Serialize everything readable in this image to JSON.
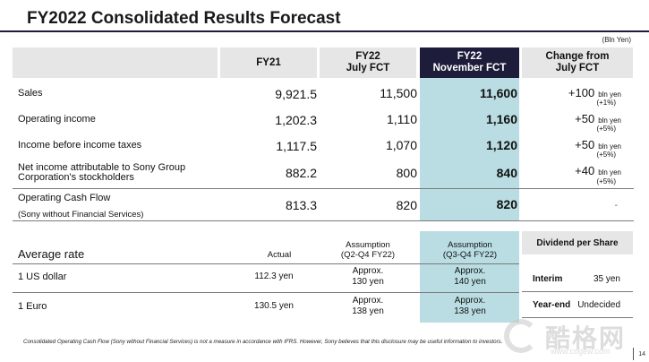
{
  "title": "FY2022 Consolidated Results Forecast",
  "unit": "(Bln Yen)",
  "headers": {
    "fy21": "FY21",
    "july_line1": "FY22",
    "july_line2": "July FCT",
    "nov_line1": "FY22",
    "nov_line2": "November FCT",
    "chg_line1": "Change from",
    "chg_line2": "July FCT"
  },
  "rows": [
    {
      "label": "Sales",
      "label2": "",
      "fy21": "9,921.5",
      "july": "11,500",
      "nov": "11,600",
      "chg": "+100",
      "chg_unit": "bln yen",
      "chg_pct": "(+1%)"
    },
    {
      "label": "Operating income",
      "label2": "",
      "fy21": "1,202.3",
      "july": "1,110",
      "nov": "1,160",
      "chg": "+50",
      "chg_unit": "bln yen",
      "chg_pct": "(+5%)"
    },
    {
      "label": "Income before income taxes",
      "label2": "",
      "fy21": "1,117.5",
      "july": "1,070",
      "nov": "1,120",
      "chg": "+50",
      "chg_unit": "bln yen",
      "chg_pct": "(+5%)"
    },
    {
      "label": "Net income attributable to Sony Group",
      "label2": "Corporation's stockholders",
      "fy21": "882.2",
      "july": "800",
      "nov": "840",
      "chg": "+40",
      "chg_unit": "bln yen",
      "chg_pct": "(+5%)"
    },
    {
      "label": "Operating Cash Flow",
      "label2": "(Sony without Financial Services)",
      "fy21": "813.3",
      "july": "820",
      "nov": "820",
      "chg": "-",
      "chg_unit": "",
      "chg_pct": ""
    }
  ],
  "rates": {
    "heading": "Average rate",
    "actual": "Actual",
    "assump_july_1": "Assumption",
    "assump_july_2": "(Q2-Q4 FY22)",
    "assump_nov_1": "Assumption",
    "assump_nov_2": "(Q3-Q4 FY22)",
    "items": [
      {
        "label": "1 US dollar",
        "actual": "112.3 yen",
        "july_1": "Approx.",
        "july_2": "130 yen",
        "nov_1": "Approx.",
        "nov_2": "140 yen"
      },
      {
        "label": "1 Euro",
        "actual": "130.5 yen",
        "july_1": "Approx.",
        "july_2": "138 yen",
        "nov_1": "Approx.",
        "nov_2": "138 yen"
      }
    ]
  },
  "dividend": {
    "heading": "Dividend per Share",
    "interim_label": "Interim",
    "interim_value": "35 yen",
    "yearend_label": "Year-end",
    "yearend_value": "Undecided"
  },
  "footnote": "Consolidated Operating Cash Flow (Sony without Financial Services) is not a measure in accordance with IFRS.  However, Sony believes that this disclosure may be useful information to investors.",
  "page_number": "14",
  "watermark": {
    "text": "酷格网",
    "sub": "www.cogew.com"
  }
}
